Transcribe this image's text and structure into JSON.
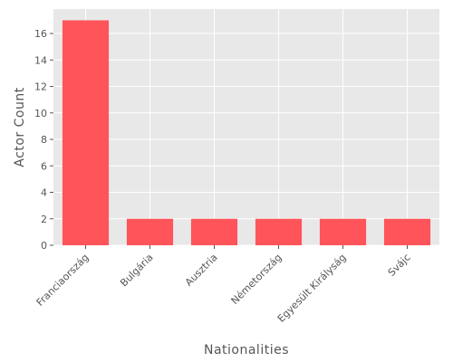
{
  "chart_data": {
    "type": "bar",
    "categories": [
      "Franciaország",
      "Bulgária",
      "Ausztria",
      "Németország",
      "Egyesült Királyság",
      "Svájc"
    ],
    "values": [
      17,
      2,
      2,
      2,
      2,
      2
    ],
    "title": "",
    "xlabel": "Nationalities",
    "ylabel": "Actor Count",
    "ylim": [
      0,
      17.85
    ],
    "yticks": [
      0,
      2,
      4,
      6,
      8,
      10,
      12,
      14,
      16
    ],
    "grid": true,
    "colors": {
      "bar": "#ff5459",
      "plot_background": "#e8e8e8",
      "grid": "#ffffff",
      "text": "#555555"
    }
  }
}
